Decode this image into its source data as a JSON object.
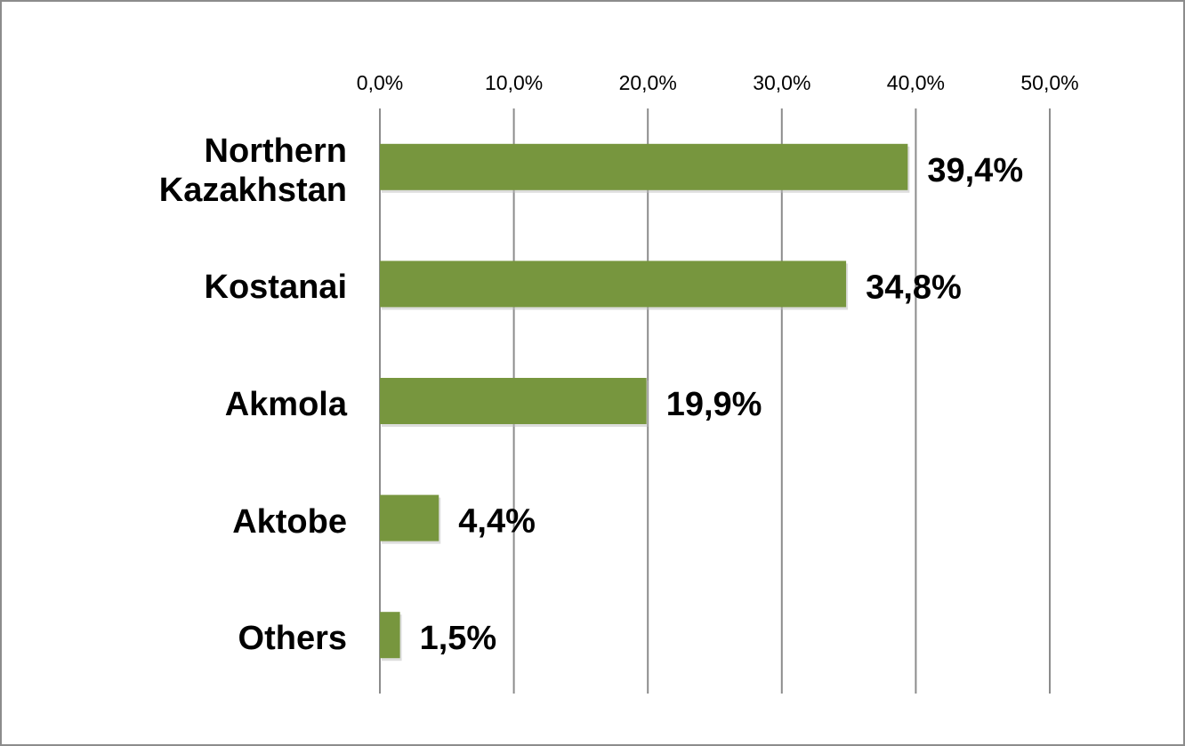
{
  "chart_data": {
    "type": "bar",
    "orientation": "horizontal",
    "categories": [
      "Northern Kazakhstan",
      "Kostanai",
      "Akmola",
      "Aktobe",
      "Others"
    ],
    "values": [
      39.4,
      34.8,
      19.9,
      4.4,
      1.5
    ],
    "value_labels": [
      "39,4%",
      "34,8%",
      "19,9%",
      "4,4%",
      "1,5%"
    ],
    "color": "#77963e",
    "xlim": [
      0,
      50
    ],
    "xticks": [
      {
        "value": 0,
        "label": "0,0%"
      },
      {
        "value": 10,
        "label": "10,0%"
      },
      {
        "value": 20,
        "label": "20,0%"
      },
      {
        "value": 30,
        "label": "30,0%"
      },
      {
        "value": 40,
        "label": "40,0%"
      },
      {
        "value": 50,
        "label": "50,0%"
      }
    ],
    "grid": true
  }
}
